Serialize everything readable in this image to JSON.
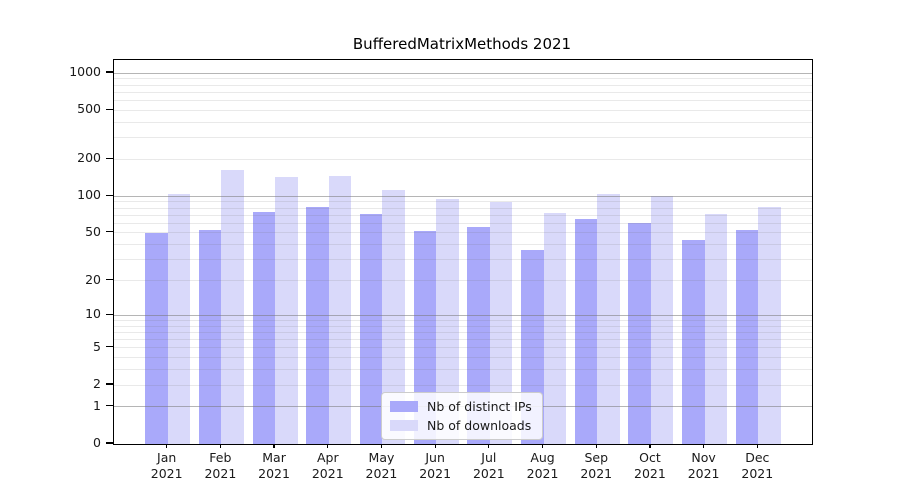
{
  "chart_data": {
    "type": "bar",
    "title": "BufferedMatrixMethods 2021",
    "categories": [
      "Jan 2021",
      "Feb 2021",
      "Mar 2021",
      "Apr 2021",
      "May 2021",
      "Jun 2021",
      "Jul 2021",
      "Aug 2021",
      "Sep 2021",
      "Oct 2021",
      "Nov 2021",
      "Dec 2021"
    ],
    "series": [
      {
        "name": "Nb of distinct IPs",
        "color": "#a9a9fa",
        "values": [
          50,
          53,
          74,
          82,
          72,
          52,
          56,
          36,
          65,
          60,
          44,
          53
        ]
      },
      {
        "name": "Nb of downloads",
        "color": "#d9d9fa",
        "values": [
          104,
          164,
          144,
          146,
          112,
          95,
          89,
          73,
          105,
          100,
          71,
          82
        ]
      }
    ],
    "scale": "log1p",
    "ylim": [
      0,
      1276
    ],
    "y_ticks": [
      0,
      1,
      2,
      5,
      10,
      20,
      50,
      100,
      200,
      500,
      1000
    ],
    "y_major_grid": [
      1,
      10,
      100,
      1000
    ],
    "grid": true,
    "legend_position": "inside-bottom-center",
    "xlabel": "",
    "ylabel": ""
  },
  "colors": {
    "grid_major": "rgba(120,120,120,0.55)",
    "grid_minor": "rgba(120,120,120,0.16)",
    "spine": "#000000",
    "text": "#1a1a1a"
  }
}
